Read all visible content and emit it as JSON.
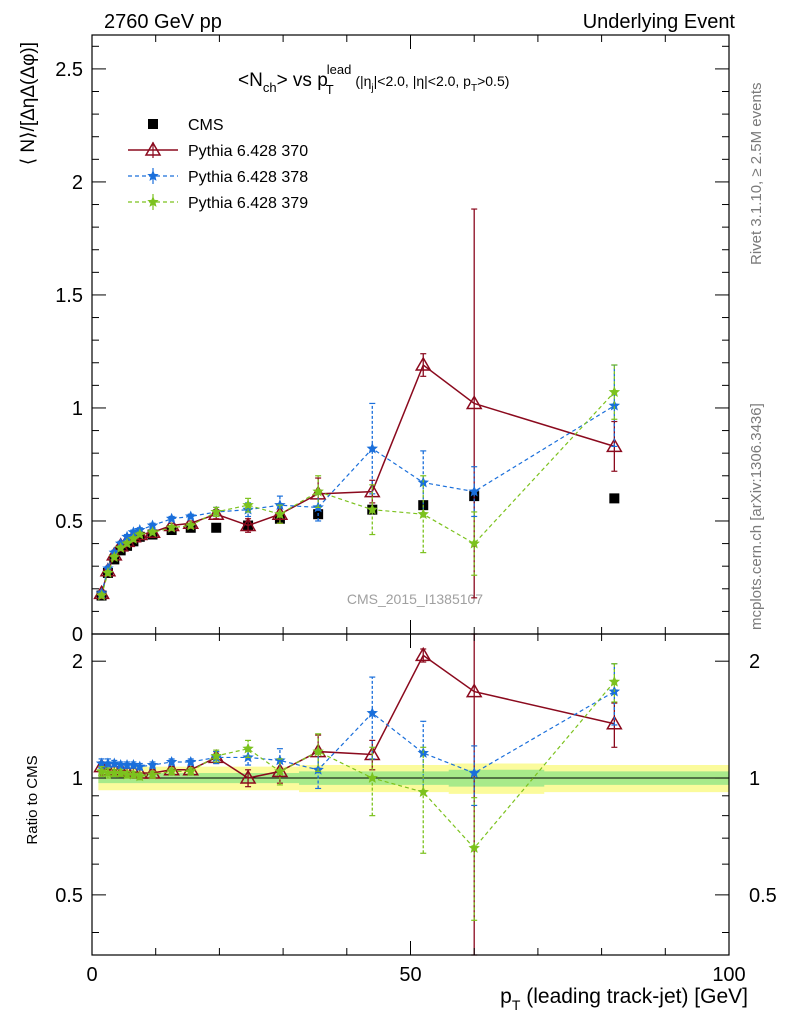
{
  "header": {
    "left": "2760 GeV pp",
    "right": "Underlying Event"
  },
  "plot_title": {
    "main": "<N",
    "sub_ch": "ch",
    "mid": "> vs p",
    "sub_t": "T",
    "sup_lead": "lead",
    "cuts_a": "(|η",
    "cuts_sub_j": "j",
    "cuts_b": "|<2.0, |η|<2.0, p",
    "cuts_sub_t": "T",
    "cuts_c": ">0.5)"
  },
  "side_labels": {
    "rivet": "Rivet 3.1.10, ≥ 2.5M events",
    "mcplots": "mcplots.cern.ch [arXiv:1306.3436]"
  },
  "watermark": "CMS_2015_I1385107",
  "axes": {
    "ylabel": "⟨ N⟩/[ΔηΔ(Δφ)]",
    "ratio_ylabel": "Ratio to CMS",
    "xlabel_p": "p",
    "xlabel_sub": "T",
    "xlabel_rest": " (leading track-jet) [GeV]"
  },
  "chart_data": {
    "type": "scatter",
    "xlim": [
      0,
      100
    ],
    "ylim": [
      0,
      2.65
    ],
    "ratio_ylim": [
      0.35,
      2.35
    ],
    "ratio_log": true,
    "x_ticks": [
      0,
      50,
      100
    ],
    "x_tick_labels": [
      "0",
      "50",
      "100"
    ],
    "y_ticks": [
      0,
      0.5,
      1,
      1.5,
      2,
      2.5
    ],
    "y_tick_labels": [
      "0",
      "0.5",
      "1",
      "1.5",
      "2",
      "2.5"
    ],
    "ratio_ticks": [
      0.5,
      1,
      2
    ],
    "ratio_tick_labels": [
      "0.5",
      "1",
      "2"
    ],
    "legend_position": "top-left",
    "x": [
      1.5,
      2.5,
      3.5,
      4.5,
      5.5,
      6.5,
      7.5,
      9.5,
      12.5,
      15.5,
      19.5,
      24.5,
      29.5,
      35.5,
      44,
      52,
      60,
      82
    ],
    "series": [
      {
        "name": "CMS",
        "color": "#000000",
        "marker": "square",
        "line": "none",
        "values": [
          0.17,
          0.27,
          0.33,
          0.37,
          0.39,
          0.41,
          0.43,
          0.44,
          0.46,
          0.47,
          0.47,
          0.48,
          0.51,
          0.53,
          0.55,
          0.57,
          0.61,
          0.6
        ],
        "errors": [
          0.01,
          0.01,
          0.01,
          0.01,
          0.01,
          0.01,
          0.01,
          0.01,
          0.01,
          0.01,
          0.01,
          0.01,
          0.01,
          0.02,
          0.02,
          0.02,
          0.03,
          0.02
        ]
      },
      {
        "name": "Pythia 6.428 370",
        "color": "#8b0a1e",
        "marker": "triangle-open",
        "line": "solid",
        "values": [
          0.18,
          0.28,
          0.35,
          0.39,
          0.41,
          0.43,
          0.44,
          0.45,
          0.48,
          0.49,
          0.53,
          0.48,
          0.53,
          0.62,
          0.63,
          1.19,
          1.02,
          0.83
        ],
        "errors": [
          0.01,
          0.01,
          0.01,
          0.01,
          0.01,
          0.01,
          0.01,
          0.01,
          0.01,
          0.01,
          0.02,
          0.03,
          0.04,
          0.07,
          0.05,
          0.05,
          0.86,
          0.11
        ],
        "ratio": [
          1.07,
          1.05,
          1.05,
          1.05,
          1.04,
          1.04,
          1.03,
          1.03,
          1.05,
          1.05,
          1.13,
          1.0,
          1.04,
          1.17,
          1.15,
          2.07,
          1.67,
          1.38
        ],
        "ratio_errors": [
          0.03,
          0.03,
          0.02,
          0.02,
          0.02,
          0.02,
          0.02,
          0.02,
          0.02,
          0.02,
          0.04,
          0.05,
          0.07,
          0.12,
          0.1,
          0.08,
          1.4,
          0.18
        ]
      },
      {
        "name": "Pythia 6.428 378",
        "color": "#1a6fdb",
        "marker": "star",
        "line": "dashed",
        "values": [
          0.18,
          0.29,
          0.36,
          0.4,
          0.43,
          0.45,
          0.46,
          0.48,
          0.51,
          0.52,
          0.54,
          0.55,
          0.57,
          0.56,
          0.82,
          0.67,
          0.63,
          1.01
        ],
        "errors": [
          0.01,
          0.01,
          0.01,
          0.01,
          0.01,
          0.01,
          0.01,
          0.01,
          0.01,
          0.01,
          0.02,
          0.03,
          0.04,
          0.06,
          0.2,
          0.14,
          0.11,
          0.18
        ],
        "ratio": [
          1.09,
          1.09,
          1.09,
          1.08,
          1.08,
          1.08,
          1.07,
          1.08,
          1.1,
          1.1,
          1.13,
          1.13,
          1.11,
          1.05,
          1.47,
          1.16,
          1.03,
          1.67
        ],
        "ratio_errors": [
          0.03,
          0.03,
          0.02,
          0.02,
          0.02,
          0.02,
          0.02,
          0.02,
          0.02,
          0.02,
          0.04,
          0.05,
          0.08,
          0.11,
          0.35,
          0.24,
          0.18,
          0.3
        ]
      },
      {
        "name": "Pythia 6.428 379",
        "color": "#7cc21e",
        "marker": "star",
        "line": "dashed",
        "values": [
          0.17,
          0.27,
          0.34,
          0.38,
          0.4,
          0.42,
          0.44,
          0.45,
          0.47,
          0.48,
          0.54,
          0.57,
          0.53,
          0.63,
          0.55,
          0.53,
          0.4,
          1.07
        ],
        "errors": [
          0.01,
          0.01,
          0.01,
          0.01,
          0.01,
          0.01,
          0.01,
          0.01,
          0.01,
          0.01,
          0.02,
          0.03,
          0.04,
          0.07,
          0.11,
          0.17,
          0.14,
          0.12
        ],
        "ratio": [
          1.04,
          1.03,
          1.03,
          1.03,
          1.02,
          1.02,
          1.01,
          1.02,
          1.04,
          1.04,
          1.14,
          1.19,
          1.04,
          1.17,
          1.0,
          0.92,
          0.66,
          1.77
        ],
        "ratio_errors": [
          0.03,
          0.03,
          0.02,
          0.02,
          0.02,
          0.02,
          0.02,
          0.02,
          0.02,
          0.02,
          0.04,
          0.06,
          0.08,
          0.13,
          0.2,
          0.28,
          0.23,
          0.2
        ]
      }
    ],
    "ratio_bands": {
      "green_halfwidth": [
        0.03,
        0.03,
        0.03,
        0.03,
        0.03,
        0.03,
        0.03,
        0.03,
        0.03,
        0.03,
        0.03,
        0.03,
        0.03,
        0.04,
        0.04,
        0.04,
        0.05,
        0.04
      ],
      "yellow_halfwidth": [
        0.07,
        0.07,
        0.07,
        0.07,
        0.07,
        0.07,
        0.07,
        0.07,
        0.07,
        0.07,
        0.07,
        0.07,
        0.07,
        0.08,
        0.08,
        0.08,
        0.09,
        0.08
      ],
      "green_color": "#a8ea8a",
      "yellow_color": "#fbfb9c"
    }
  }
}
